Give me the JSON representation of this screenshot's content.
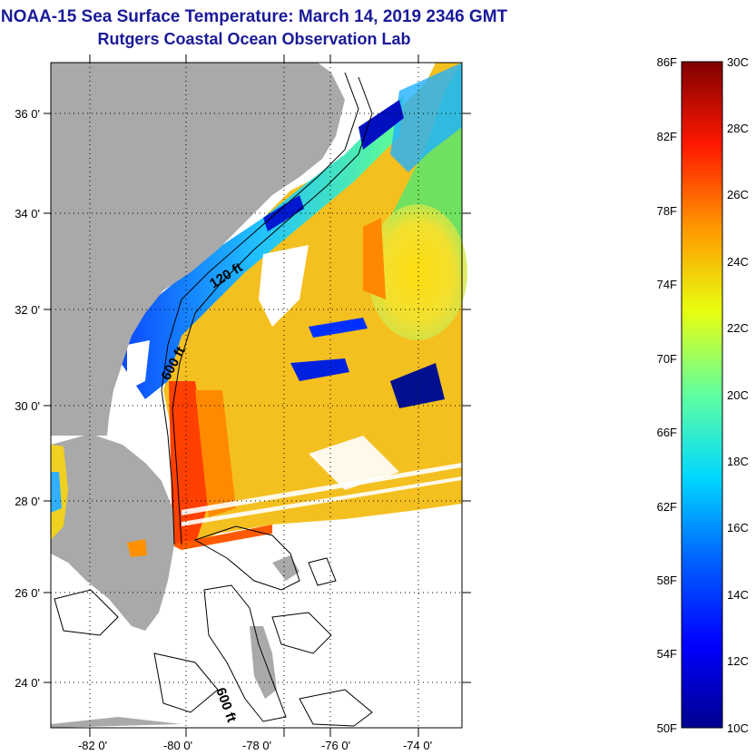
{
  "title": {
    "line1": "NOAA-15 Sea Surface Temperature:  March 14, 2019 2346 GMT",
    "line2": "Rutgers Coastal Ocean Observation Lab"
  },
  "map": {
    "lat_labels": [
      "36 0'",
      "34 0'",
      "32 0'",
      "30 0'",
      "28 0'",
      "26 0'",
      "24 0'"
    ],
    "lon_labels": [
      "-82 0'",
      "-80 0'",
      "-78 0'",
      "-76 0'",
      "-74 0'"
    ],
    "contour_labels": [
      "120 ft",
      "600 ft",
      "600 ft"
    ],
    "colors": {
      "land": "#a9a9a9",
      "ocean_nodata": "#ffffff",
      "contour": "#000000"
    }
  },
  "colorbar": {
    "fahrenheit_labels": [
      "86F",
      "82F",
      "78F",
      "74F",
      "70F",
      "66F",
      "62F",
      "58F",
      "54F",
      "50F"
    ],
    "celsius_labels": [
      "30C",
      "28C",
      "26C",
      "24C",
      "22C",
      "20C",
      "18C",
      "16C",
      "14C",
      "12C",
      "10C"
    ],
    "colors": [
      "#00008f",
      "#0000ff",
      "#0080ff",
      "#00ffff",
      "#80ff80",
      "#ffff00",
      "#ff8000",
      "#ff0000",
      "#800000"
    ]
  }
}
